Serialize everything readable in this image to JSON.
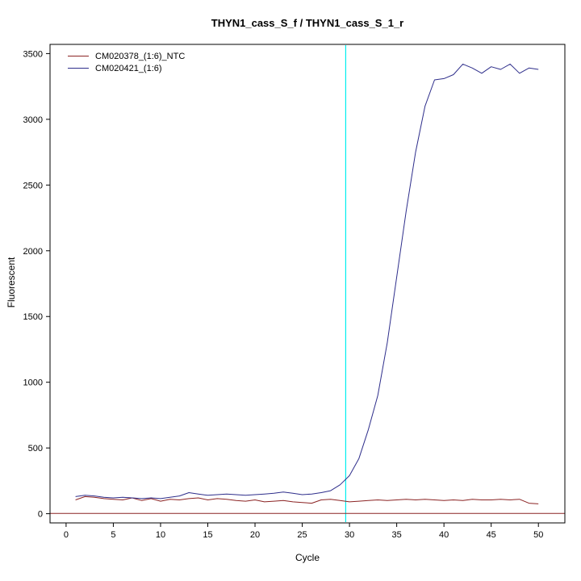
{
  "title": "THYN1_cass_S_f / THYN1_cass_S_1_r",
  "chart_data": {
    "type": "line",
    "title": "THYN1_cass_S_f / THYN1_cass_S_1_r",
    "xlabel": "Cycle",
    "ylabel": "Fluorescent",
    "xlim": [
      -1.7,
      52.8
    ],
    "ylim": [
      -70,
      3570
    ],
    "xticks": [
      0,
      5,
      10,
      15,
      20,
      25,
      30,
      35,
      40,
      45,
      50
    ],
    "yticks": [
      0,
      500,
      1000,
      1500,
      2000,
      2500,
      3000,
      3500
    ],
    "grid": false,
    "legend_position": "top-left",
    "legend": [
      {
        "label": "CM020378_(1:6)_NTC",
        "color": "#8B2323"
      },
      {
        "label": "CM020421_(1:6)",
        "color": "#2E2E8B"
      }
    ],
    "threshold_line": {
      "orientation": "vertical",
      "x": 29.6,
      "color": "#00EEEE"
    },
    "baseline_line": {
      "orientation": "horizontal",
      "y": 2,
      "color": "#8B2323"
    },
    "x": [
      1,
      2,
      3,
      4,
      5,
      6,
      7,
      8,
      9,
      10,
      11,
      12,
      13,
      14,
      15,
      16,
      17,
      18,
      19,
      20,
      21,
      22,
      23,
      24,
      25,
      26,
      27,
      28,
      29,
      30,
      31,
      32,
      33,
      34,
      35,
      36,
      37,
      38,
      39,
      40,
      41,
      42,
      43,
      44,
      45,
      46,
      47,
      48,
      49,
      50
    ],
    "series": [
      {
        "id": "ntc",
        "name": "CM020378_(1:6)_NTC",
        "color": "#8B2323",
        "values": [
          105,
          130,
          125,
          115,
          110,
          105,
          120,
          100,
          115,
          95,
          110,
          105,
          115,
          120,
          105,
          115,
          110,
          100,
          95,
          105,
          90,
          95,
          100,
          90,
          85,
          80,
          105,
          110,
          100,
          90,
          95,
          100,
          105,
          100,
          105,
          110,
          105,
          110,
          105,
          100,
          105,
          100,
          110,
          105,
          105,
          110,
          105,
          110,
          80,
          75
        ]
      },
      {
        "id": "cm020421",
        "name": "CM020421_(1:6)",
        "color": "#2E2E8B",
        "values": [
          130,
          140,
          135,
          125,
          120,
          125,
          120,
          115,
          120,
          115,
          125,
          135,
          160,
          150,
          140,
          145,
          150,
          145,
          140,
          145,
          150,
          155,
          165,
          155,
          145,
          150,
          160,
          175,
          220,
          290,
          420,
          640,
          900,
          1300,
          1800,
          2300,
          2750,
          3100,
          3300,
          3310,
          3340,
          3420,
          3390,
          3350,
          3400,
          3380,
          3420,
          3350,
          3390,
          3380
        ]
      }
    ]
  }
}
